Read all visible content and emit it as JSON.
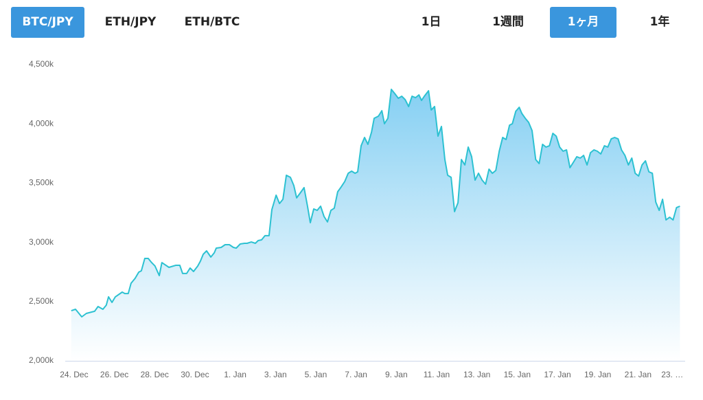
{
  "tabs": {
    "pairs": [
      "BTC/JPY",
      "ETH/JPY",
      "ETH/BTC"
    ],
    "active_pair": 0,
    "periods": [
      "1日",
      "1週間",
      "1ヶ月",
      "1年"
    ],
    "active_period": 2
  },
  "chart_data": {
    "type": "area",
    "x": [
      -0.14,
      0.07,
      0.38,
      0.61,
      1.02,
      1.19,
      1.43,
      1.6,
      1.71,
      1.88,
      2.05,
      2.39,
      2.52,
      2.69,
      2.83,
      3.03,
      3.21,
      3.34,
      3.51,
      3.68,
      3.85,
      4.02,
      4.23,
      4.36,
      4.71,
      5.05,
      5.25,
      5.39,
      5.59,
      5.76,
      5.93,
      6.14,
      6.27,
      6.41,
      6.58,
      6.79,
      6.96,
      7.06,
      7.3,
      7.5,
      7.71,
      7.91,
      8.05,
      8.25,
      8.46,
      8.59,
      8.8,
      9.0,
      9.14,
      9.31,
      9.48,
      9.68,
      9.82,
      10.03,
      10.2,
      10.37,
      10.54,
      10.74,
      10.91,
      11.05,
      11.22,
      11.42,
      11.59,
      11.73,
      11.9,
      12.07,
      12.24,
      12.41,
      12.58,
      12.75,
      12.92,
      13.09,
      13.26,
      13.44,
      13.61,
      13.78,
      13.95,
      14.08,
      14.25,
      14.42,
      14.59,
      14.77,
      14.9,
      15.11,
      15.28,
      15.41,
      15.58,
      15.75,
      15.92,
      16.1,
      16.27,
      16.44,
      16.61,
      16.78,
      16.95,
      17.12,
      17.25,
      17.39,
      17.6,
      17.73,
      17.9,
      18.07,
      18.24,
      18.41,
      18.55,
      18.72,
      18.89,
      19.06,
      19.23,
      19.4,
      19.57,
      19.74,
      19.91,
      20.08,
      20.26,
      20.43,
      20.6,
      20.77,
      20.94,
      21.11,
      21.28,
      21.45,
      21.62,
      21.76,
      21.93,
      22.1,
      22.23,
      22.4,
      22.57,
      22.74,
      22.92,
      23.09,
      23.26,
      23.43,
      23.6,
      23.77,
      23.94,
      24.11,
      24.28,
      24.45,
      24.62,
      24.79,
      24.96,
      25.13,
      25.3,
      25.47,
      25.64,
      25.81,
      25.98,
      26.15,
      26.33,
      26.5,
      26.67,
      26.84,
      27.01,
      27.18,
      27.35,
      27.52,
      27.69,
      27.86,
      28.03,
      28.2,
      28.37,
      28.54,
      28.71,
      28.88,
      29.05,
      29.22,
      29.39,
      29.57,
      29.74,
      29.91,
      30.08
    ],
    "series": [
      {
        "color": "#2cc1d1",
        "values": [
          2423,
          2435,
          2371,
          2400,
          2418,
          2458,
          2435,
          2470,
          2540,
          2493,
          2540,
          2580,
          2568,
          2568,
          2655,
          2696,
          2748,
          2760,
          2864,
          2864,
          2829,
          2800,
          2719,
          2829,
          2789,
          2806,
          2806,
          2737,
          2737,
          2783,
          2754,
          2800,
          2841,
          2899,
          2928,
          2876,
          2911,
          2951,
          2957,
          2980,
          2980,
          2957,
          2951,
          2986,
          2992,
          2992,
          3003,
          2992,
          3015,
          3021,
          3056,
          3056,
          3276,
          3398,
          3328,
          3363,
          3566,
          3549,
          3479,
          3375,
          3415,
          3462,
          3305,
          3166,
          3282,
          3270,
          3305,
          3218,
          3172,
          3270,
          3288,
          3427,
          3467,
          3514,
          3583,
          3601,
          3583,
          3595,
          3815,
          3885,
          3827,
          3931,
          4047,
          4065,
          4111,
          4001,
          4047,
          4291,
          4256,
          4216,
          4233,
          4204,
          4146,
          4233,
          4221,
          4244,
          4198,
          4233,
          4279,
          4117,
          4146,
          3896,
          3978,
          3699,
          3566,
          3549,
          3259,
          3334,
          3699,
          3653,
          3804,
          3723,
          3525,
          3583,
          3525,
          3491,
          3618,
          3583,
          3607,
          3769,
          3885,
          3868,
          3989,
          4001,
          4106,
          4140,
          4088,
          4047,
          4013,
          3943,
          3699,
          3665,
          3827,
          3804,
          3815,
          3920,
          3896,
          3804,
          3769,
          3780,
          3630,
          3676,
          3723,
          3711,
          3734,
          3653,
          3757,
          3780,
          3769,
          3746,
          3815,
          3804,
          3873,
          3885,
          3873,
          3780,
          3734,
          3653,
          3711,
          3583,
          3560,
          3653,
          3688,
          3595,
          3583,
          3340,
          3270,
          3363,
          3189,
          3212,
          3189,
          3293,
          3305
        ]
      }
    ],
    "xlim": [
      -0.44,
      30.34
    ],
    "xticks": [
      {
        "value": 0,
        "label": "24. Dec"
      },
      {
        "value": 2,
        "label": "26. Dec"
      },
      {
        "value": 4,
        "label": "28. Dec"
      },
      {
        "value": 6,
        "label": "30. Dec"
      },
      {
        "value": 8,
        "label": "1. Jan"
      },
      {
        "value": 10,
        "label": "3. Jan"
      },
      {
        "value": 12,
        "label": "5. Jan"
      },
      {
        "value": 14,
        "label": "7. Jan"
      },
      {
        "value": 16,
        "label": "9. Jan"
      },
      {
        "value": 18,
        "label": "11. Jan"
      },
      {
        "value": 20,
        "label": "13. Jan"
      },
      {
        "value": 22,
        "label": "15. Jan"
      },
      {
        "value": 24,
        "label": "17. Jan"
      },
      {
        "value": 26,
        "label": "19. Jan"
      },
      {
        "value": 28,
        "label": "21. Jan"
      },
      {
        "value": 29.7,
        "label": "23. …"
      }
    ],
    "ylim": [
      2000,
      4500
    ],
    "yticks": [
      {
        "value": 2000,
        "label": "2,000k"
      },
      {
        "value": 2500,
        "label": "2,500k"
      },
      {
        "value": 3000,
        "label": "3,000k"
      },
      {
        "value": 3500,
        "label": "3,500k"
      },
      {
        "value": 4000,
        "label": "4,000k"
      },
      {
        "value": 4500,
        "label": "4,500k"
      }
    ]
  }
}
